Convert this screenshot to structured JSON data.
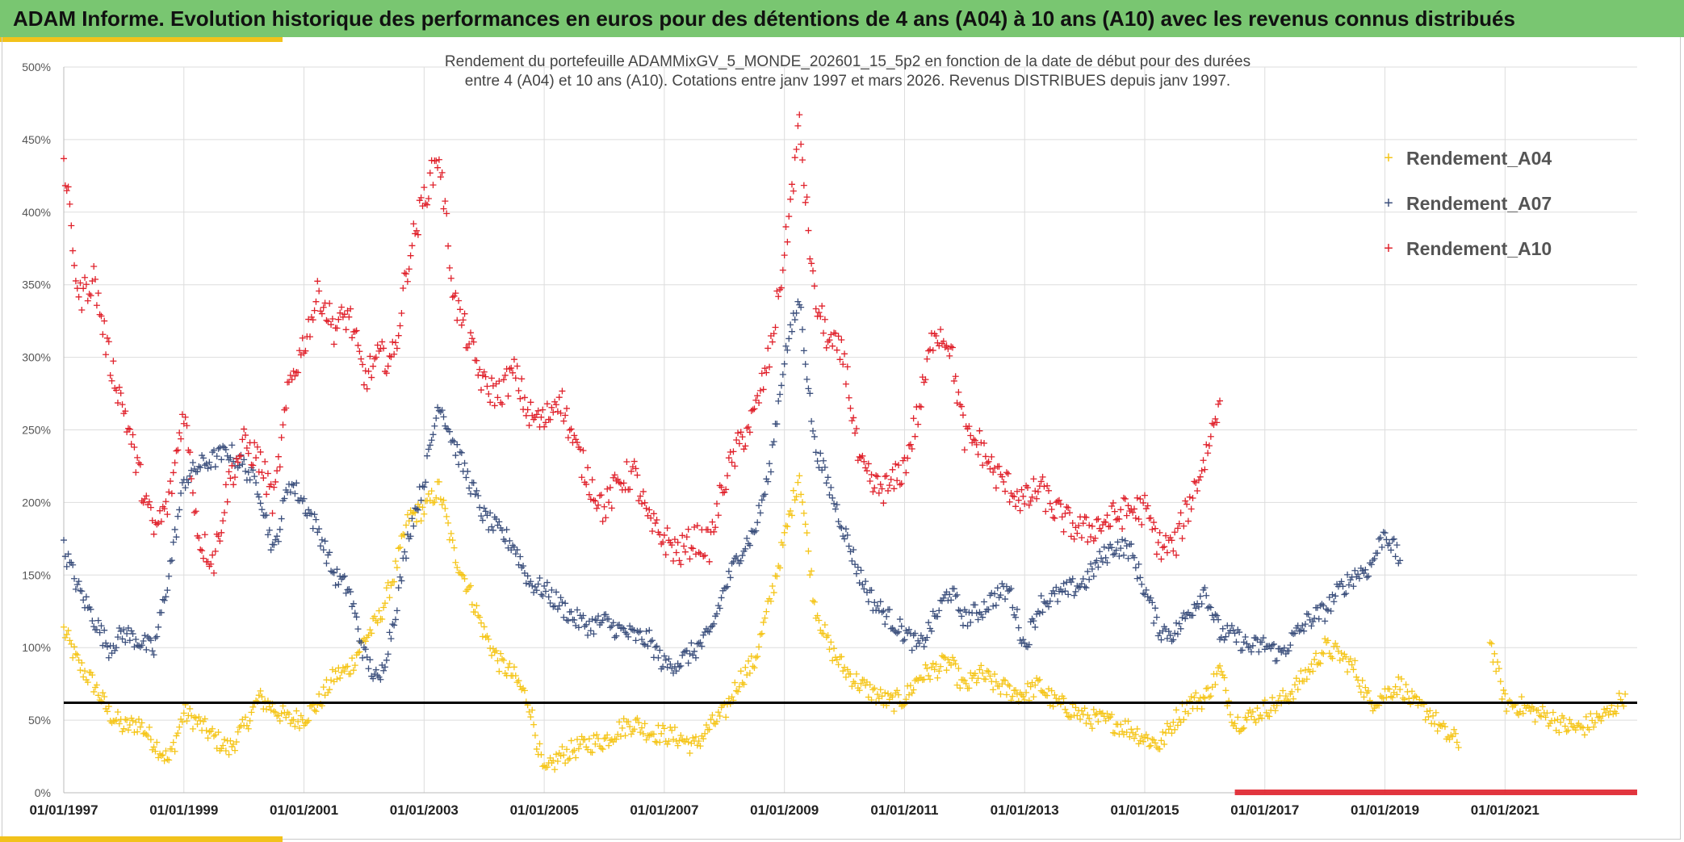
{
  "header": {
    "title": "ADAM Informe. Evolution historique des performances en euros pour des détentions de 4 ans (A04) à 10 ans (A10) avec les revenus connus distribués"
  },
  "colors": {
    "header_bg": "#79c671",
    "accent": "#f2c21b",
    "A04": "#f5c518",
    "A07": "#3b4f7c",
    "A10": "#e0212b",
    "reference_line": "#000000",
    "grid": "#dddddd"
  },
  "chart_data": {
    "type": "scatter",
    "title_lines": [
      "Rendement du portefeuille ADAMMixGV_5_MONDE_202601_15_5p2  en fonction de la date de début pour des durées",
      "entre 4 (A04) et 10 ans (A10). Cotations entre janv 1997 et mars 2026. Revenus DISTRIBUES depuis janv 1997."
    ],
    "xlabel": "",
    "ylabel": "",
    "xlim": [
      1997.0,
      2023.2
    ],
    "ylim": [
      0,
      500
    ],
    "y_ticks": [
      0,
      50,
      100,
      150,
      200,
      250,
      300,
      350,
      400,
      450,
      500
    ],
    "y_tick_labels": [
      "0%",
      "50%",
      "100%",
      "150%",
      "200%",
      "250%",
      "300%",
      "350%",
      "400%",
      "450%",
      "500%"
    ],
    "x_ticks": [
      1997,
      1999,
      2001,
      2003,
      2005,
      2007,
      2009,
      2011,
      2013,
      2015,
      2017,
      2019,
      2021
    ],
    "x_tick_labels": [
      "01/01/1997",
      "01/01/1999",
      "01/01/2001",
      "01/01/2003",
      "01/01/2005",
      "01/01/2007",
      "01/01/2009",
      "01/01/2011",
      "01/01/2013",
      "01/01/2015",
      "01/01/2017",
      "01/01/2019",
      "01/01/2021"
    ],
    "grid": true,
    "legend_position": "top-right",
    "reference_line_value": 62,
    "zero_band_start": 2016.5,
    "series": [
      {
        "name": "Rendement_A04",
        "x": [
          1997.0,
          1997.25,
          1997.5,
          1997.75,
          1998.0,
          1998.25,
          1998.5,
          1998.75,
          1999.0,
          1999.25,
          1999.5,
          1999.75,
          2000.0,
          2000.25,
          2000.5,
          2000.75,
          2001.0,
          2001.25,
          2001.5,
          2001.75,
          2002.0,
          2002.25,
          2002.5,
          2002.75,
          2003.0,
          2003.25,
          2003.5,
          2003.75,
          2004.0,
          2004.25,
          2004.5,
          2004.75,
          2005.0,
          2005.25,
          2005.5,
          2005.75,
          2006.0,
          2006.25,
          2006.5,
          2006.75,
          2007.0,
          2007.25,
          2007.5,
          2007.75,
          2008.0,
          2008.25,
          2008.5,
          2008.75,
          2009.0,
          2009.25,
          2009.5,
          2009.75,
          2010.0,
          2010.25,
          2010.5,
          2010.75,
          2011.0,
          2011.25,
          2011.5,
          2011.75,
          2012.0,
          2012.25,
          2012.5,
          2012.75,
          2013.0,
          2013.25,
          2013.5,
          2013.75,
          2014.0,
          2014.25,
          2014.5,
          2014.75,
          2015.0,
          2015.25,
          2015.5,
          2015.75,
          2016.0,
          2016.25,
          2016.5,
          2016.75,
          2017.0,
          2017.25,
          2017.5,
          2017.75,
          2018.0,
          2018.25,
          2018.5,
          2018.75,
          2019.0,
          2019.25,
          2019.5,
          2019.75,
          2020.0,
          2020.25,
          2020.5,
          2020.75,
          2021.0,
          2021.25,
          2021.5,
          2021.75,
          2022.0,
          2022.25,
          2022.5,
          2022.75,
          2023.0
        ],
        "values": [
          112,
          88,
          75,
          55,
          45,
          48,
          35,
          22,
          55,
          48,
          38,
          30,
          45,
          65,
          58,
          50,
          52,
          62,
          80,
          85,
          105,
          120,
          150,
          190,
          195,
          210,
          165,
          140,
          110,
          90,
          80,
          62,
          12,
          25,
          30,
          34,
          36,
          44,
          48,
          42,
          40,
          38,
          32,
          45,
          55,
          78,
          90,
          130,
          175,
          220,
          130,
          100,
          85,
          75,
          68,
          62,
          65,
          80,
          85,
          90,
          72,
          82,
          75,
          70,
          68,
          74,
          62,
          58,
          52,
          50,
          48,
          44,
          38,
          33,
          50,
          62,
          65,
          85,
          48,
          52,
          58,
          62,
          72,
          85,
          100,
          95,
          85,
          62,
          68,
          75,
          60,
          55,
          40,
          35,
          null,
          105,
          62,
          60,
          55,
          52,
          46,
          44,
          50,
          55,
          68
        ],
        "color": "#f5c518"
      },
      {
        "name": "Rendement_A07",
        "x": [
          1997.0,
          1997.25,
          1997.5,
          1997.75,
          1998.0,
          1998.25,
          1998.5,
          1998.75,
          1999.0,
          1999.25,
          1999.5,
          1999.75,
          2000.0,
          2000.25,
          2000.5,
          2000.75,
          2001.0,
          2001.25,
          2001.5,
          2001.75,
          2002.0,
          2002.25,
          2002.5,
          2002.75,
          2003.0,
          2003.25,
          2003.5,
          2003.75,
          2004.0,
          2004.25,
          2004.5,
          2004.75,
          2005.0,
          2005.25,
          2005.5,
          2005.75,
          2006.0,
          2006.25,
          2006.5,
          2006.75,
          2007.0,
          2007.25,
          2007.5,
          2007.75,
          2008.0,
          2008.25,
          2008.5,
          2008.75,
          2009.0,
          2009.25,
          2009.5,
          2009.75,
          2010.0,
          2010.25,
          2010.5,
          2010.75,
          2011.0,
          2011.25,
          2011.5,
          2011.75,
          2012.0,
          2012.25,
          2012.5,
          2012.75,
          2013.0,
          2013.25,
          2013.5,
          2013.75,
          2014.0,
          2014.25,
          2014.5,
          2014.75,
          2015.0,
          2015.25,
          2015.5,
          2015.75,
          2016.0,
          2016.25,
          2016.5,
          2016.75,
          2017.0,
          2017.25,
          2017.5,
          2017.75,
          2018.0,
          2018.25,
          2018.5,
          2018.75,
          2019.0,
          2019.25
        ],
        "values": [
          168,
          140,
          120,
          100,
          110,
          105,
          98,
          150,
          215,
          225,
          230,
          235,
          225,
          210,
          165,
          215,
          200,
          180,
          150,
          140,
          95,
          75,
          120,
          180,
          215,
          270,
          240,
          215,
          190,
          180,
          170,
          145,
          140,
          130,
          120,
          115,
          118,
          112,
          108,
          105,
          88,
          90,
          98,
          108,
          140,
          165,
          180,
          220,
          300,
          340,
          240,
          210,
          180,
          150,
          130,
          120,
          110,
          100,
          120,
          140,
          120,
          125,
          135,
          140,
          100,
          130,
          135,
          140,
          145,
          160,
          170,
          168,
          140,
          112,
          110,
          125,
          140,
          110,
          108,
          100,
          102,
          95,
          108,
          120,
          125,
          140,
          150,
          155,
          180,
          160
        ],
        "color": "#3b4f7c"
      },
      {
        "name": "Rendement_A10",
        "x": [
          1997.0,
          1997.25,
          1997.5,
          1997.75,
          1998.0,
          1998.25,
          1998.5,
          1998.75,
          1999.0,
          1999.25,
          1999.5,
          1999.75,
          2000.0,
          2000.25,
          2000.5,
          2000.75,
          2001.0,
          2001.25,
          2001.5,
          2001.75,
          2002.0,
          2002.25,
          2002.5,
          2002.75,
          2003.0,
          2003.25,
          2003.5,
          2003.75,
          2004.0,
          2004.25,
          2004.5,
          2004.75,
          2005.0,
          2005.25,
          2005.5,
          2005.75,
          2006.0,
          2006.25,
          2006.5,
          2006.75,
          2007.0,
          2007.25,
          2007.5,
          2007.75,
          2008.0,
          2008.25,
          2008.5,
          2008.75,
          2009.0,
          2009.25,
          2009.5,
          2009.75,
          2010.0,
          2010.25,
          2010.5,
          2010.75,
          2011.0,
          2011.25,
          2011.5,
          2011.75,
          2012.0,
          2012.25,
          2012.5,
          2012.75,
          2013.0,
          2013.25,
          2013.5,
          2013.75,
          2014.0,
          2014.25,
          2014.5,
          2014.75,
          2015.0,
          2015.25,
          2015.5,
          2015.75,
          2016.0,
          2016.25
        ],
        "values": [
          435,
          340,
          355,
          300,
          265,
          220,
          180,
          200,
          265,
          175,
          160,
          215,
          240,
          230,
          200,
          280,
          310,
          345,
          320,
          330,
          285,
          300,
          300,
          370,
          410,
          440,
          340,
          310,
          280,
          275,
          290,
          260,
          255,
          275,
          240,
          215,
          195,
          215,
          220,
          185,
          175,
          165,
          175,
          170,
          215,
          240,
          260,
          300,
          370,
          460,
          340,
          310,
          300,
          225,
          210,
          210,
          225,
          265,
          320,
          310,
          245,
          240,
          220,
          210,
          200,
          210,
          195,
          185,
          180,
          185,
          190,
          195,
          195,
          170,
          170,
          200,
          230,
          270
        ],
        "color": "#e0212b"
      }
    ]
  }
}
